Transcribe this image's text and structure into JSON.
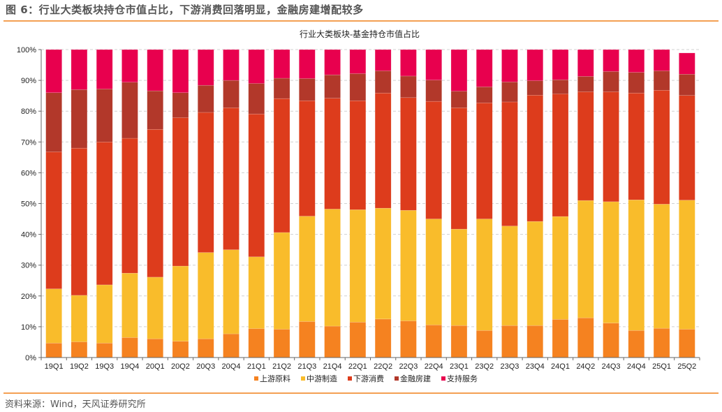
{
  "figure_title": "图 6：行业大类板块持仓市值占比，下游消费回落明显，金融房建增配较多",
  "source": "资料来源：Wind，天风证券研究所",
  "chart_data": {
    "type": "bar",
    "stacked": true,
    "title": "行业大类板块-基金持仓市值占比",
    "xlabel": "",
    "ylabel": "",
    "ylim": [
      0,
      100
    ],
    "yticks": [
      "0%",
      "10%",
      "20%",
      "30%",
      "40%",
      "50%",
      "60%",
      "70%",
      "80%",
      "90%",
      "100%"
    ],
    "grid": true,
    "legend_position": "bottom",
    "categories": [
      "19Q1",
      "19Q2",
      "19Q3",
      "19Q4",
      "20Q1",
      "20Q2",
      "20Q3",
      "20Q4",
      "21Q1",
      "21Q2",
      "21Q3",
      "21Q4",
      "22Q1",
      "22Q2",
      "22Q3",
      "22Q4",
      "23Q1",
      "23Q2",
      "23Q3",
      "23Q4",
      "24Q1",
      "24Q2",
      "24Q3",
      "24Q4",
      "25Q1",
      "25Q2"
    ],
    "series": [
      {
        "name": "上游原料",
        "color": "#f58220",
        "values": [
          4.7,
          5.1,
          4.7,
          6.5,
          6.1,
          5.3,
          6.1,
          7.7,
          9.4,
          9.2,
          11.7,
          10.2,
          11.5,
          12.5,
          11.9,
          10.6,
          10.4,
          8.8,
          10.4,
          10.4,
          12.4,
          12.9,
          11.2,
          8.8,
          9.5,
          9.2
        ]
      },
      {
        "name": "中游制造",
        "color": "#f9bc2b",
        "values": [
          17.6,
          15.1,
          18.9,
          20.9,
          20.0,
          24.4,
          28.0,
          27.3,
          23.3,
          31.4,
          34.2,
          38.0,
          36.5,
          36.0,
          35.9,
          34.4,
          31.3,
          36.2,
          32.3,
          33.8,
          33.4,
          38.1,
          39.4,
          42.4,
          40.3,
          41.9
        ]
      },
      {
        "name": "下游消费",
        "color": "#dd3c1c",
        "values": [
          44.5,
          47.8,
          46.4,
          43.8,
          48.0,
          48.2,
          45.5,
          46.1,
          46.4,
          43.5,
          37.5,
          36.0,
          35.4,
          37.4,
          36.6,
          38.2,
          39.4,
          37.7,
          40.3,
          41.0,
          39.8,
          35.3,
          35.7,
          34.7,
          37.0,
          34.0
        ]
      },
      {
        "name": "金融房建",
        "color": "#b2382a",
        "values": [
          19.2,
          19.0,
          17.2,
          18.2,
          12.5,
          8.1,
          8.8,
          8.9,
          9.9,
          6.6,
          7.2,
          7.6,
          8.8,
          7.2,
          7.0,
          6.9,
          5.4,
          5.2,
          6.5,
          4.7,
          4.6,
          5.0,
          6.6,
          6.7,
          6.3,
          6.9
        ]
      },
      {
        "name": "支持服务",
        "color": "#e8004e",
        "values": [
          14.0,
          13.0,
          12.8,
          10.6,
          13.4,
          14.0,
          11.6,
          10.0,
          11.0,
          9.3,
          9.4,
          8.2,
          7.8,
          6.9,
          8.6,
          9.9,
          13.5,
          12.1,
          10.5,
          10.1,
          9.8,
          8.7,
          7.1,
          7.4,
          6.9,
          6.9
        ]
      }
    ]
  }
}
